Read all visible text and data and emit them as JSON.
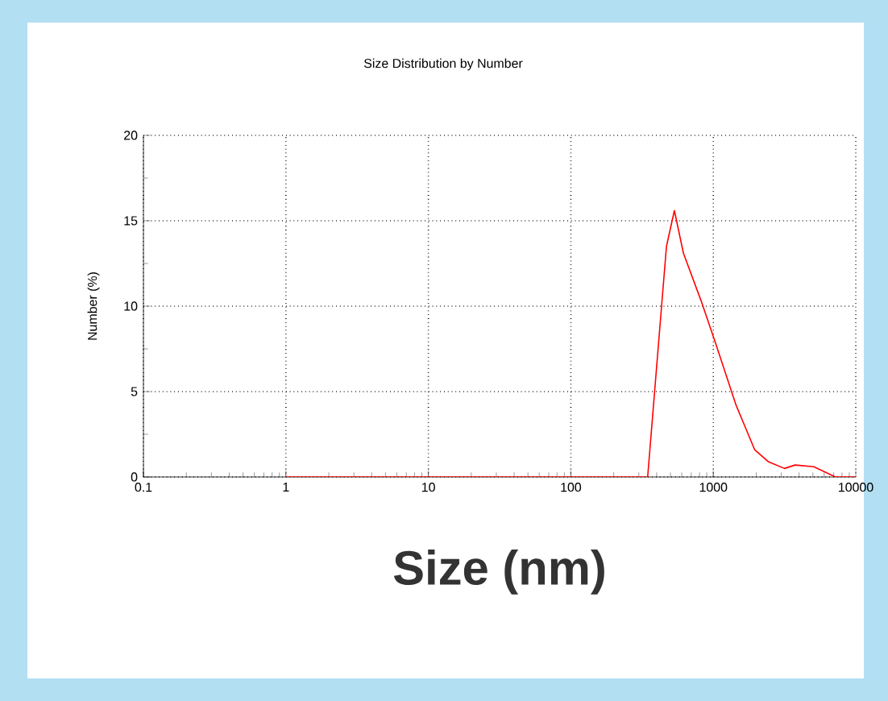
{
  "chart_data": {
    "type": "line",
    "title": "Size Distribution by Number",
    "xlabel": "Size (nm)",
    "ylabel": "Number (%)",
    "log": "x",
    "xlim": [
      0.1,
      10000
    ],
    "xticks": [
      0.1,
      1,
      10,
      100,
      1000,
      10000
    ],
    "ylim": [
      0,
      20
    ],
    "yticks": [
      0,
      5,
      10,
      15,
      20
    ],
    "grid": true,
    "marker": "none",
    "line_style": "solid",
    "series": [
      {
        "color": "#ff0000",
        "x": [
          1,
          346,
          469,
          533,
          617,
          822,
          1040,
          1445,
          1950,
          2430,
          3160,
          3750,
          5080,
          7200,
          10000
        ],
        "values": [
          0,
          0,
          13.5,
          15.6,
          13.1,
          10.3,
          7.8,
          4.2,
          1.6,
          0.9,
          0.5,
          0.7,
          0.6,
          0,
          0
        ]
      }
    ]
  }
}
